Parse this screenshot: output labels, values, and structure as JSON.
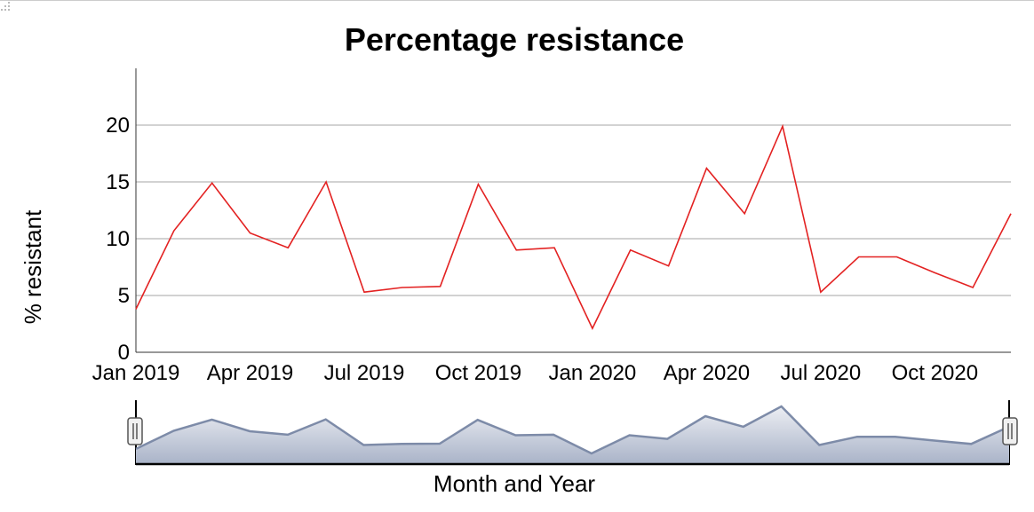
{
  "chart_data": {
    "type": "line",
    "title": "Percentage resistance",
    "xlabel": "Month and Year",
    "ylabel": "% resistant",
    "x_tick_labels": [
      "Jan 2019",
      "Apr 2019",
      "Jul 2019",
      "Oct 2019",
      "Jan 2020",
      "Apr 2020",
      "Jul 2020",
      "Oct 2020"
    ],
    "y_ticks": [
      0,
      5,
      10,
      15,
      20
    ],
    "ylim": [
      0,
      25
    ],
    "grid": true,
    "x": [
      "Jan 2019",
      "Feb 2019",
      "Mar 2019",
      "Apr 2019",
      "May 2019",
      "Jun 2019",
      "Jul 2019",
      "Aug 2019",
      "Sep 2019",
      "Oct 2019",
      "Nov 2019",
      "Dec 2019",
      "Jan 2020",
      "Feb 2020",
      "Mar 2020",
      "Apr 2020",
      "May 2020",
      "Jun 2020",
      "Jul 2020",
      "Aug 2020",
      "Sep 2020",
      "Oct 2020",
      "Nov 2020",
      "Dec 2020"
    ],
    "series": [
      {
        "color": "#e32222",
        "values": [
          3.8,
          10.7,
          14.9,
          10.5,
          9.2,
          15.0,
          5.3,
          5.7,
          5.8,
          14.8,
          9.0,
          9.2,
          2.1,
          9.0,
          7.6,
          16.2,
          12.2,
          19.9,
          5.3,
          8.4,
          8.4,
          7.0,
          5.7,
          12.2
        ]
      }
    ],
    "navigator": {
      "color": "#7d8ba8",
      "range_start": "Jan 2019",
      "range_end": "Dec 2020"
    }
  }
}
